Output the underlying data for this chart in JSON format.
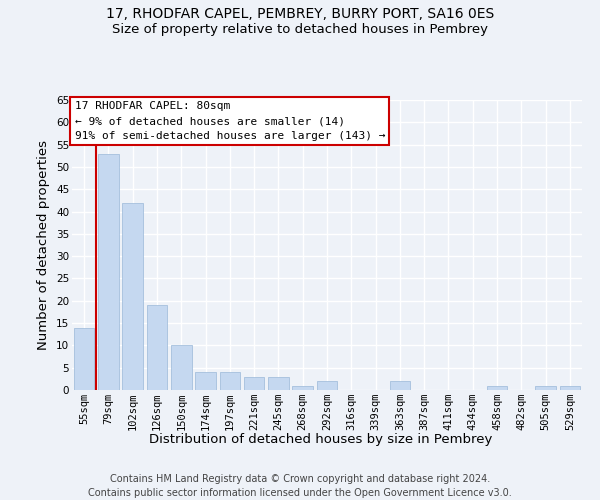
{
  "title1": "17, RHODFAR CAPEL, PEMBREY, BURRY PORT, SA16 0ES",
  "title2": "Size of property relative to detached houses in Pembrey",
  "xlabel": "Distribution of detached houses by size in Pembrey",
  "ylabel": "Number of detached properties",
  "categories": [
    "55sqm",
    "79sqm",
    "102sqm",
    "126sqm",
    "150sqm",
    "174sqm",
    "197sqm",
    "221sqm",
    "245sqm",
    "268sqm",
    "292sqm",
    "316sqm",
    "339sqm",
    "363sqm",
    "387sqm",
    "411sqm",
    "434sqm",
    "458sqm",
    "482sqm",
    "505sqm",
    "529sqm"
  ],
  "values": [
    14,
    53,
    42,
    19,
    10,
    4,
    4,
    3,
    3,
    1,
    2,
    0,
    0,
    2,
    0,
    0,
    0,
    1,
    0,
    1,
    1
  ],
  "bar_color": "#c5d8f0",
  "bar_edge_color": "#9ab8d8",
  "highlight_color": "#cc0000",
  "annotation_text": "17 RHODFAR CAPEL: 80sqm\n← 9% of detached houses are smaller (14)\n91% of semi-detached houses are larger (143) →",
  "annotation_box_color": "#ffffff",
  "annotation_box_edge": "#cc0000",
  "ylim": [
    0,
    65
  ],
  "yticks": [
    0,
    5,
    10,
    15,
    20,
    25,
    30,
    35,
    40,
    45,
    50,
    55,
    60,
    65
  ],
  "footer": "Contains HM Land Registry data © Crown copyright and database right 2024.\nContains public sector information licensed under the Open Government Licence v3.0.",
  "bg_color": "#eef2f8",
  "grid_color": "#ffffff",
  "title_fontsize": 10,
  "subtitle_fontsize": 9.5,
  "axis_label_fontsize": 9.5,
  "tick_fontsize": 7.5,
  "footer_fontsize": 7,
  "annot_fontsize": 8
}
